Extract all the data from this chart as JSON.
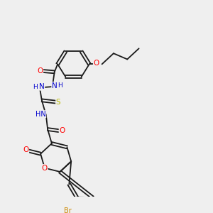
{
  "background_color": "#efefef",
  "bond_color": "#1a1a1a",
  "colors": {
    "O": "#ff0000",
    "N": "#0000cd",
    "S": "#b8b800",
    "Br": "#cc8800",
    "C": "#1a1a1a",
    "H": "#4a4a4a"
  },
  "font_size": 7.5,
  "lw": 1.3
}
